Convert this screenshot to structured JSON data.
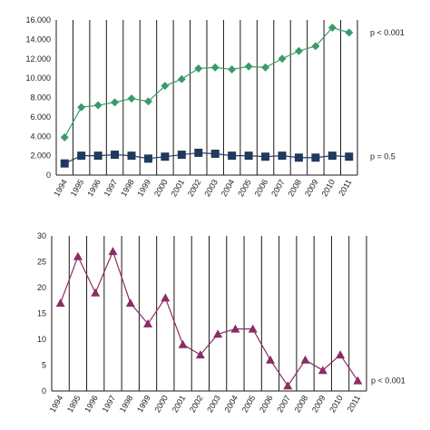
{
  "chart_data": [
    {
      "type": "line",
      "x": [
        "1994",
        "1995",
        "1996",
        "1997",
        "1998",
        "1999",
        "2000",
        "2001",
        "2002",
        "2003",
        "2004",
        "2005",
        "2006",
        "2007",
        "2008",
        "2009",
        "2010",
        "2011"
      ],
      "ylim": [
        0,
        16000
      ],
      "yticks": [
        "0",
        "2.000",
        "4.000",
        "6.000",
        "8.000",
        "10.000",
        "12.000",
        "14.000",
        "16.000"
      ],
      "grid": "vertical",
      "series": [
        {
          "marker": "diamond",
          "color": "#3a9a6a",
          "values": [
            3900,
            7000,
            7200,
            7500,
            7900,
            7600,
            9200,
            9900,
            11000,
            11100,
            10900,
            11200,
            11100,
            12000,
            12800,
            13300,
            15200,
            14700
          ],
          "annotation": "p < 0.001"
        },
        {
          "marker": "square",
          "color": "#1f3a5f",
          "values": [
            1200,
            2000,
            2000,
            2100,
            2000,
            1700,
            1900,
            2100,
            2300,
            2200,
            2000,
            2000,
            1900,
            2000,
            1800,
            1800,
            2000,
            1900
          ],
          "annotation": "p = 0.5"
        }
      ]
    },
    {
      "type": "line",
      "x": [
        "1994",
        "1995",
        "1996",
        "1997",
        "1998",
        "1999",
        "2000",
        "2001",
        "2002",
        "2003",
        "2004",
        "2005",
        "2006",
        "2007",
        "2008",
        "2009",
        "2010",
        "2011"
      ],
      "ylim": [
        0,
        30
      ],
      "yticks": [
        "0",
        "5",
        "10",
        "15",
        "20",
        "25",
        "30"
      ],
      "grid": "vertical",
      "series": [
        {
          "marker": "triangle",
          "color": "#8b2d63",
          "values": [
            17,
            26,
            19,
            27,
            17,
            13,
            18,
            9,
            7,
            11,
            12,
            12,
            6,
            1,
            6,
            4,
            7,
            2
          ],
          "annotation": "p < 0.001"
        }
      ]
    }
  ]
}
